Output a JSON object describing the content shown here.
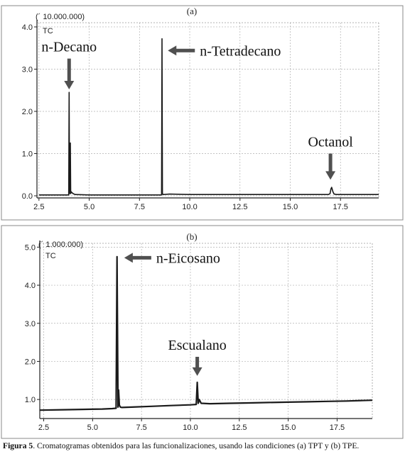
{
  "chart_data": [
    {
      "type": "line",
      "panel_label": "(a)",
      "multiplier_label": "(´ 10.000.000)",
      "trace_label": "TC",
      "x_ticks": [
        "2.5",
        "5.0",
        "7.5",
        "10.0",
        "12.5",
        "15.0",
        "17.5"
      ],
      "x_tick_values": [
        2.5,
        5.0,
        7.5,
        10.0,
        12.5,
        15.0,
        17.5
      ],
      "y_ticks": [
        "0.0",
        "1.0",
        "2.0",
        "3.0",
        "4.0"
      ],
      "y_tick_values": [
        0,
        1,
        2,
        3,
        4
      ],
      "xlim": [
        2.4,
        19.4
      ],
      "ylim": [
        -0.05,
        4.1
      ],
      "grid": true,
      "series": [
        {
          "x": [
            2.5,
            3.5,
            3.98,
            4.0,
            4.02,
            4.06,
            4.08,
            4.1,
            4.13,
            4.16,
            4.2,
            4.3,
            5.0,
            6.0,
            7.0,
            8.0,
            8.6,
            8.62,
            8.64,
            8.66,
            8.7,
            9.0,
            10.0,
            11.0,
            12.0,
            13.0,
            14.0,
            15.0,
            16.0,
            16.9,
            16.98,
            17.02,
            17.06,
            17.12,
            17.18,
            17.3,
            18.0,
            19.4
          ],
          "y": [
            0.02,
            0.02,
            0.02,
            2.45,
            0.05,
            1.25,
            0.05,
            0.1,
            0.08,
            0.07,
            0.05,
            0.03,
            0.02,
            0.02,
            0.02,
            0.02,
            0.02,
            3.72,
            0.06,
            0.03,
            0.03,
            0.04,
            0.03,
            0.03,
            0.03,
            0.03,
            0.03,
            0.03,
            0.03,
            0.03,
            0.05,
            0.16,
            0.2,
            0.1,
            0.04,
            0.03,
            0.03,
            0.03
          ]
        }
      ],
      "annotations": [
        {
          "text": "n-Decano",
          "x": 4.0,
          "arrow": "down",
          "arrow_tip_y": 2.52,
          "arrow_tail_y": 3.25
        },
        {
          "text": "n-Tetradecano",
          "x": 8.7,
          "y": 3.44,
          "arrow": "left"
        },
        {
          "text": "Octanol",
          "x": 17.0,
          "arrow": "down",
          "arrow_tip_y": 0.38,
          "arrow_tail_y": 1.0
        }
      ]
    },
    {
      "type": "line",
      "panel_label": "(b)",
      "multiplier_label": "(´ 1.000.000)",
      "trace_label": "TC",
      "x_ticks": [
        "2.5",
        "5.0",
        "7.5",
        "10.0",
        "12.5",
        "15.0",
        "17.5"
      ],
      "x_tick_values": [
        2.5,
        5.0,
        7.5,
        10.0,
        12.5,
        15.0,
        17.5
      ],
      "y_ticks": [
        "1.0",
        "2.0",
        "3.0",
        "4.0",
        "5.0"
      ],
      "y_tick_values": [
        1,
        2,
        3,
        4,
        5
      ],
      "xlim": [
        2.3,
        19.3
      ],
      "ylim": [
        0.5,
        5.1
      ],
      "grid": true,
      "series": [
        {
          "x": [
            2.3,
            3.5,
            4.5,
            5.5,
            6.0,
            6.2,
            6.25,
            6.3,
            6.33,
            6.37,
            6.42,
            6.5,
            7.0,
            8.0,
            9.0,
            10.0,
            10.3,
            10.35,
            10.4,
            10.45,
            10.55,
            11.0,
            12.0,
            13.0,
            14.0,
            15.0,
            16.0,
            17.0,
            18.0,
            19.3
          ],
          "y": [
            0.72,
            0.73,
            0.74,
            0.75,
            0.76,
            0.77,
            4.75,
            0.8,
            1.25,
            0.85,
            0.8,
            0.79,
            0.8,
            0.82,
            0.84,
            0.86,
            0.87,
            1.45,
            0.9,
            1.0,
            0.9,
            0.89,
            0.9,
            0.91,
            0.92,
            0.93,
            0.94,
            0.95,
            0.96,
            0.98
          ]
        }
      ],
      "annotations": [
        {
          "text": "n-Eicosano",
          "x": 6.4,
          "y": 4.72,
          "arrow": "left"
        },
        {
          "text": "Escualano",
          "x": 10.35,
          "arrow": "down",
          "arrow_tip_y": 1.62,
          "arrow_tail_y": 2.12
        }
      ]
    }
  ],
  "caption": {
    "label": "Figura 5",
    "text": ". Cromatogramas obtenidos para las funcionalizaciones, usando las condiciones (a) TPT y (b) TPE."
  }
}
